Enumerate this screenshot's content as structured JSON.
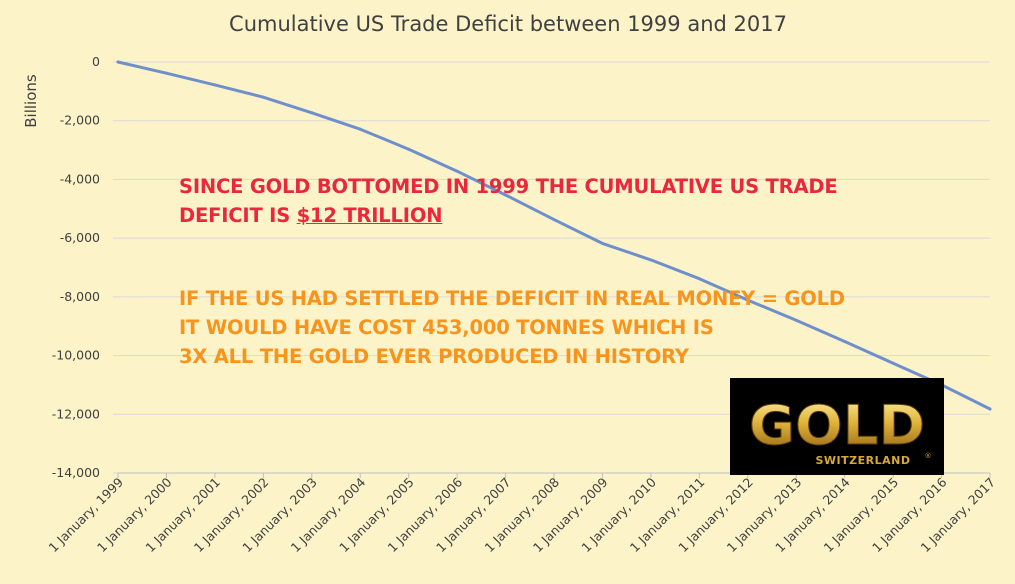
{
  "chart_data": {
    "type": "line",
    "title": "Cumulative US Trade Deficit between 1999 and 2017",
    "xlabel": "",
    "ylabel": "Billions",
    "ylim": [
      -14000,
      0
    ],
    "yticks": [
      0,
      -2000,
      -4000,
      -6000,
      -8000,
      -10000,
      -12000,
      -14000
    ],
    "ytick_labels": [
      "0",
      "-2,000",
      "-4,000",
      "-6,000",
      "-8,000",
      "-10,000",
      "-12,000",
      "-14,000"
    ],
    "categories": [
      "1 January, 1999",
      "1 January, 2000",
      "1 January, 2001",
      "1 January, 2002",
      "1 January, 2003",
      "1 January, 2004",
      "1 January, 2005",
      "1 January, 2006",
      "1 January, 2007",
      "1 January, 2008",
      "1 January, 2009",
      "1 January, 2010",
      "1 January, 2011",
      "1 January, 2012",
      "1 January, 2013",
      "1 January, 2014",
      "1 January, 2015",
      "1 January, 2016",
      "1 January, 2017"
    ],
    "values": [
      0,
      -380,
      -780,
      -1200,
      -1730,
      -2290,
      -2970,
      -3720,
      -4530,
      -5370,
      -6180,
      -6740,
      -7380,
      -8110,
      -8800,
      -9520,
      -10260,
      -11000,
      -11820
    ],
    "grid": true,
    "line_color": "#6f8fcc",
    "gridline_color": "#d9d9d9"
  },
  "annotation": {
    "line1": "SINCE GOLD BOTTOMED IN 1999 THE CUMULATIVE US TRADE",
    "line2_prefix": "DEFICIT IS ",
    "line2_amount": "$12 TRILLION",
    "line3": "IF THE US HAD SETTLED THE DEFICIT IN REAL MONEY = GOLD",
    "line4": "IT WOULD HAVE COST 453,000 TONNES WHICH IS",
    "line5": "3X ALL THE GOLD EVER PRODUCED IN HISTORY",
    "primary_color": "#e8283c",
    "secondary_color": "#f7941d"
  },
  "logo": {
    "wordmark": "GOLD",
    "subtitle": "SWITZERLAND",
    "mark": "®"
  }
}
